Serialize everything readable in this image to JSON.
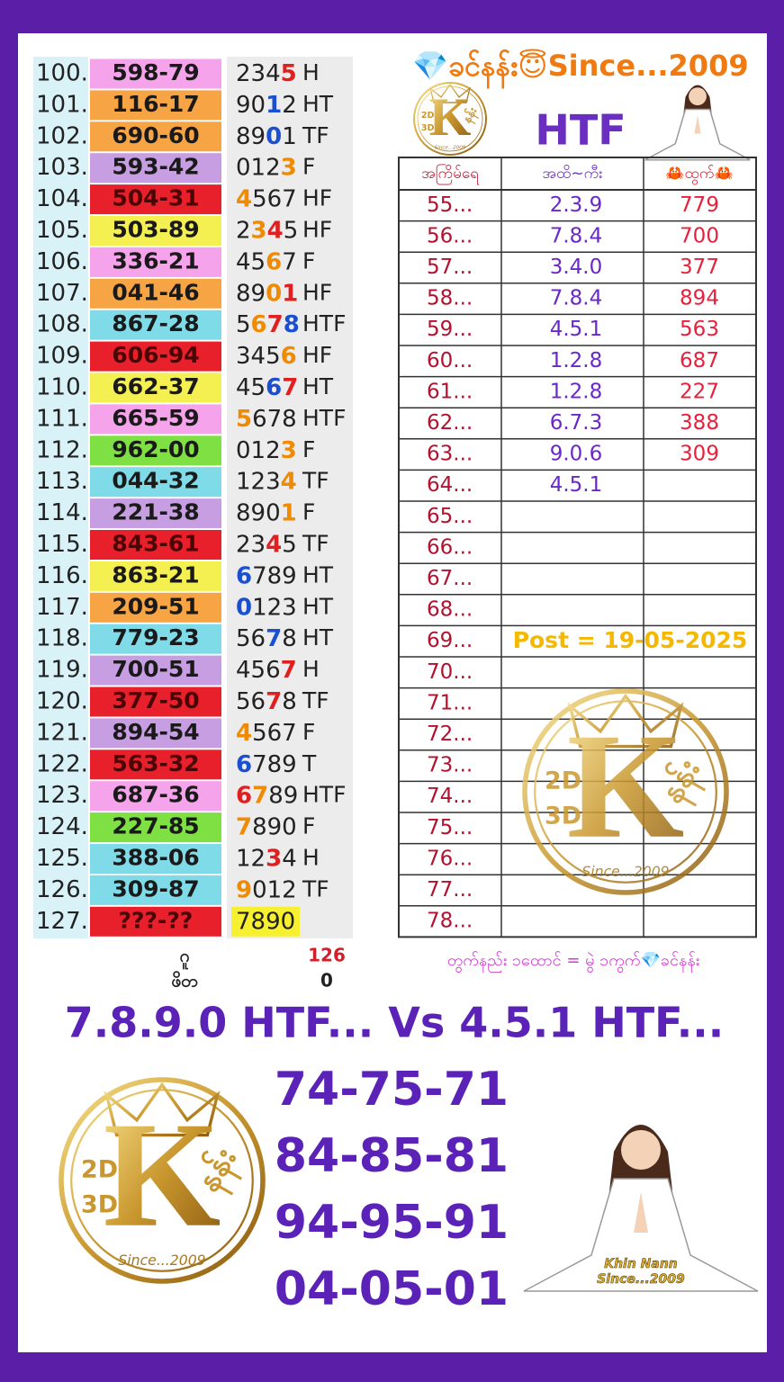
{
  "header": {
    "title": "💎ခင်နန်း😇Since...2009",
    "subtitle": "HTF"
  },
  "left_table": {
    "rows": [
      {
        "index": "100.",
        "number": "598-79",
        "number_bg": "#f5a3ea",
        "digits": [
          {
            "text": "234"
          },
          {
            "text": "5",
            "color": "#e02020"
          }
        ],
        "type": "H"
      },
      {
        "index": "101.",
        "number": "116-17",
        "number_bg": "#f6a444",
        "digits": [
          {
            "text": "90"
          },
          {
            "text": "1",
            "color": "#1a4fd0"
          },
          {
            "text": "2"
          }
        ],
        "type": "HT"
      },
      {
        "index": "102.",
        "number": "690-60",
        "number_bg": "#f6a444",
        "digits": [
          {
            "text": "89"
          },
          {
            "text": "0",
            "color": "#1a4fd0"
          },
          {
            "text": "1"
          }
        ],
        "type": "TF"
      },
      {
        "index": "103.",
        "number": "593-42",
        "number_bg": "#c79ee2",
        "digits": [
          {
            "text": "012"
          },
          {
            "text": "3",
            "color": "#f08a00"
          }
        ],
        "type": "F"
      },
      {
        "index": "104.",
        "number": "504-31",
        "number_bg": "#e8202c",
        "digits": [
          {
            "text": "4",
            "color": "#f08a00"
          },
          {
            "text": "567"
          }
        ],
        "type": "HF"
      },
      {
        "index": "105.",
        "number": "503-89",
        "number_bg": "#f5f052",
        "digits": [
          {
            "text": "2"
          },
          {
            "text": "3",
            "color": "#f08a00"
          },
          {
            "text": "4",
            "color": "#e02020"
          },
          {
            "text": "5"
          }
        ],
        "type": "HF"
      },
      {
        "index": "106.",
        "number": "336-21",
        "number_bg": "#f5a3ea",
        "digits": [
          {
            "text": "45"
          },
          {
            "text": "6",
            "color": "#f08a00"
          },
          {
            "text": "7"
          }
        ],
        "type": "F"
      },
      {
        "index": "107.",
        "number": "041-46",
        "number_bg": "#f6a444",
        "digits": [
          {
            "text": "89"
          },
          {
            "text": "0",
            "color": "#f08a00"
          },
          {
            "text": "1",
            "color": "#e02020"
          }
        ],
        "type": "HF"
      },
      {
        "index": "108.",
        "number": "867-28",
        "number_bg": "#80dbe8",
        "digits": [
          {
            "text": "5"
          },
          {
            "text": "6",
            "color": "#f08a00"
          },
          {
            "text": "7",
            "color": "#e02020"
          },
          {
            "text": "8",
            "color": "#1a4fd0"
          }
        ],
        "type": "HTF"
      },
      {
        "index": "109.",
        "number": "606-94",
        "number_bg": "#e8202c",
        "digits": [
          {
            "text": "345"
          },
          {
            "text": "6",
            "color": "#f08a00"
          }
        ],
        "type": "HF"
      },
      {
        "index": "110.",
        "number": "662-37",
        "number_bg": "#f5f052",
        "digits": [
          {
            "text": "45"
          },
          {
            "text": "6",
            "color": "#1a4fd0"
          },
          {
            "text": "7",
            "color": "#e02020"
          }
        ],
        "type": "HT"
      },
      {
        "index": "111.",
        "number": "665-59",
        "number_bg": "#f5a3ea",
        "digits": [
          {
            "text": "5",
            "color": "#f08a00"
          },
          {
            "text": "678"
          }
        ],
        "type": "HTF"
      },
      {
        "index": "112.",
        "number": "962-00",
        "number_bg": "#7ee042",
        "digits": [
          {
            "text": "012"
          },
          {
            "text": "3",
            "color": "#f08a00"
          }
        ],
        "type": "F"
      },
      {
        "index": "113.",
        "number": "044-32",
        "number_bg": "#80dbe8",
        "digits": [
          {
            "text": "123"
          },
          {
            "text": "4",
            "color": "#f08a00"
          }
        ],
        "type": "TF"
      },
      {
        "index": "114.",
        "number": "221-38",
        "number_bg": "#c79ee2",
        "digits": [
          {
            "text": "890"
          },
          {
            "text": "1",
            "color": "#f08a00"
          }
        ],
        "type": "F"
      },
      {
        "index": "115.",
        "number": "843-61",
        "number_bg": "#e8202c",
        "digits": [
          {
            "text": "23"
          },
          {
            "text": "4",
            "color": "#e02020"
          },
          {
            "text": "5"
          }
        ],
        "type": "TF"
      },
      {
        "index": "116.",
        "number": "863-21",
        "number_bg": "#f5f052",
        "digits": [
          {
            "text": "6",
            "color": "#1a4fd0"
          },
          {
            "text": "789"
          }
        ],
        "type": "HT"
      },
      {
        "index": "117.",
        "number": "209-51",
        "number_bg": "#f6a444",
        "digits": [
          {
            "text": "0",
            "color": "#1a4fd0"
          },
          {
            "text": "123"
          }
        ],
        "type": "HT"
      },
      {
        "index": "118.",
        "number": "779-23",
        "number_bg": "#80dbe8",
        "digits": [
          {
            "text": "56"
          },
          {
            "text": "7",
            "color": "#1a4fd0"
          },
          {
            "text": "8"
          }
        ],
        "type": "HT"
      },
      {
        "index": "119.",
        "number": "700-51",
        "number_bg": "#c79ee2",
        "digits": [
          {
            "text": "456"
          },
          {
            "text": "7",
            "color": "#e02020"
          }
        ],
        "type": "H"
      },
      {
        "index": "120.",
        "number": "377-50",
        "number_bg": "#e8202c",
        "digits": [
          {
            "text": "56"
          },
          {
            "text": "7",
            "color": "#e02020"
          },
          {
            "text": "8"
          }
        ],
        "type": "TF"
      },
      {
        "index": "121.",
        "number": "894-54",
        "number_bg": "#c79ee2",
        "digits": [
          {
            "text": "4",
            "color": "#f08a00"
          },
          {
            "text": "567"
          }
        ],
        "type": "F"
      },
      {
        "index": "122.",
        "number": "563-32",
        "number_bg": "#e8202c",
        "digits": [
          {
            "text": "6",
            "color": "#1a4fd0"
          },
          {
            "text": "789"
          }
        ],
        "type": "T"
      },
      {
        "index": "123.",
        "number": "687-36",
        "number_bg": "#f5a3ea",
        "digits": [
          {
            "text": "6",
            "color": "#e02020"
          },
          {
            "text": "7",
            "color": "#f08a00"
          },
          {
            "text": "89"
          }
        ],
        "type": "HTF"
      },
      {
        "index": "124.",
        "number": "227-85",
        "number_bg": "#7ee042",
        "digits": [
          {
            "text": "7",
            "color": "#f08a00"
          },
          {
            "text": "890"
          }
        ],
        "type": "F"
      },
      {
        "index": "125.",
        "number": "388-06",
        "number_bg": "#80dbe8",
        "digits": [
          {
            "text": "12"
          },
          {
            "text": "3",
            "color": "#e02020"
          },
          {
            "text": "4"
          }
        ],
        "type": "H"
      },
      {
        "index": "126.",
        "number": "309-87",
        "number_bg": "#80dbe8",
        "digits": [
          {
            "text": "9",
            "color": "#f08a00"
          },
          {
            "text": "012"
          }
        ],
        "type": "TF"
      },
      {
        "index": "127.",
        "number": "???-??",
        "number_bg": "#e8202c",
        "digits": [
          {
            "text": "7890"
          }
        ],
        "digits_bg": "#f7f030"
      }
    ]
  },
  "left_summary": [
    {
      "label": "ဂူ",
      "value": 126,
      "color": "#d0202c"
    },
    {
      "label": "ဖိတ",
      "value": 0,
      "color": "#222222"
    }
  ],
  "right_table": {
    "headers": [
      "အကြိမ်ရေ",
      "အထိ~ကီး",
      "🦀ထွက်🦀"
    ],
    "rows": [
      [
        "55...",
        "2.3.9",
        "779"
      ],
      [
        "56...",
        "7.8.4",
        "700"
      ],
      [
        "57...",
        "3.4.0",
        "377"
      ],
      [
        "58...",
        "7.8.4",
        "894"
      ],
      [
        "59...",
        "4.5.1",
        "563"
      ],
      [
        "60...",
        "1.2.8",
        "687"
      ],
      [
        "61...",
        "1.2.8",
        "227"
      ],
      [
        "62...",
        "6.7.3",
        "388"
      ],
      [
        "63...",
        "9.0.6",
        "309"
      ],
      [
        "64...",
        "4.5.1"
      ],
      [
        "65..."
      ],
      [
        "66..."
      ],
      [
        "67..."
      ],
      [
        "68..."
      ],
      [
        "69..."
      ],
      [
        "70..."
      ],
      [
        "71..."
      ],
      [
        "72..."
      ],
      [
        "73..."
      ],
      [
        "74..."
      ],
      [
        "75..."
      ],
      [
        "76..."
      ],
      [
        "77..."
      ],
      [
        "78..."
      ]
    ]
  },
  "post_note": "Post = 19-05-2025",
  "footnote": "တွက်နည်း ၁ထောင် = မွဲ ၁ကွက်💎ခင်နန်း",
  "headline": "7.8.9.0 HTF... Vs  4.5.1 HTF...",
  "predictions": [
    "74-75-71",
    "84-85-81",
    "94-95-91",
    "04-05-01"
  ],
  "logo": {
    "d2": "2D",
    "d3": "3D",
    "letter": "K",
    "name": "နန်း",
    "since": "Since...2009"
  },
  "figure_caption": [
    "Khin Nann",
    "Since...2009"
  ]
}
